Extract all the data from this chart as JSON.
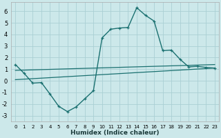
{
  "xlabel": "Humidex (Indice chaleur)",
  "background_color": "#cce8ea",
  "grid_color": "#aacfd4",
  "line_color": "#1a7070",
  "xlim": [
    -0.5,
    23.5
  ],
  "ylim": [
    -3.5,
    6.8
  ],
  "xticks": [
    0,
    1,
    2,
    3,
    4,
    5,
    6,
    7,
    8,
    9,
    10,
    11,
    12,
    13,
    14,
    15,
    16,
    17,
    18,
    19,
    20,
    21,
    22,
    23
  ],
  "yticks": [
    -3,
    -2,
    -1,
    0,
    1,
    2,
    3,
    4,
    5,
    6
  ],
  "main_x": [
    0,
    1,
    2,
    3,
    4,
    5,
    6,
    7,
    8,
    9,
    10,
    11,
    12,
    13,
    14,
    15,
    16,
    17,
    18,
    19,
    20,
    21,
    22,
    23
  ],
  "main_y": [
    1.4,
    0.65,
    -0.2,
    -0.15,
    -1.15,
    -2.2,
    -2.65,
    -2.25,
    -1.55,
    -0.85,
    3.7,
    4.45,
    4.55,
    4.6,
    6.3,
    5.65,
    5.15,
    2.6,
    2.65,
    1.85,
    1.2,
    1.25,
    1.15,
    1.1
  ],
  "line2_x": [
    0,
    23
  ],
  "line2_y": [
    0.9,
    1.4
  ],
  "line3_x": [
    0,
    23
  ],
  "line3_y": [
    0.1,
    1.1
  ]
}
